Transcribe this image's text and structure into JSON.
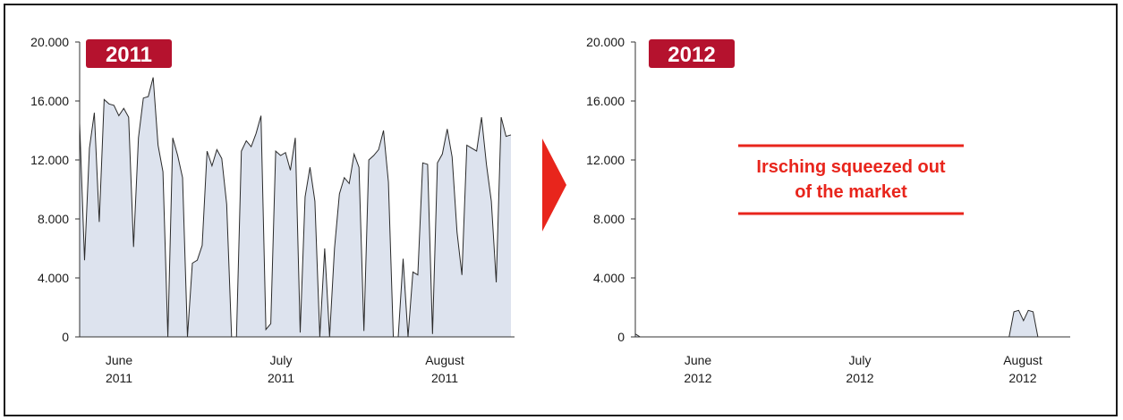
{
  "colors": {
    "area_fill": "#dde3ee",
    "line": "#2a2a2a",
    "badge": "#b5122e",
    "accent_red": "#e8251c",
    "axis": "#333333"
  },
  "chart_data": [
    {
      "type": "area",
      "badge": "2011",
      "ylim": [
        0,
        20000
      ],
      "y_ticks": [
        "0",
        "4.000",
        "8.000",
        "12.000",
        "16.000",
        "20.000"
      ],
      "x_ticks": [
        {
          "month": "June",
          "year": "2011"
        },
        {
          "month": "July",
          "year": "2011"
        },
        {
          "month": "August",
          "year": "2011"
        }
      ],
      "x_range": [
        0,
        91
      ],
      "values": [
        14500,
        5200,
        12800,
        15200,
        7800,
        16100,
        15800,
        15700,
        15000,
        15500,
        14900,
        6100,
        13500,
        16200,
        16300,
        17600,
        13000,
        11200,
        0,
        13500,
        12300,
        10800,
        0,
        5000,
        5200,
        6200,
        12600,
        11600,
        12700,
        12100,
        9000,
        0,
        0,
        12600,
        13300,
        12900,
        13800,
        15000,
        500,
        900,
        12600,
        12300,
        12500,
        11300,
        13500,
        300,
        9500,
        11500,
        9200,
        0,
        6000,
        0,
        6000,
        9700,
        10800,
        10400,
        12400,
        11500,
        400,
        12000,
        12300,
        12700,
        14000,
        10500,
        0,
        0,
        5300,
        0,
        4400,
        4200,
        11800,
        11700,
        200,
        11800,
        12400,
        14100,
        12200,
        7100,
        4200,
        13000,
        12800,
        12600,
        14900,
        11700,
        9200,
        3700,
        14900,
        13600,
        13700
      ],
      "baseline_start_value": 0
    },
    {
      "type": "area",
      "badge": "2012",
      "ylim": [
        0,
        20000
      ],
      "y_ticks": [
        "0",
        "4.000",
        "8.000",
        "12.000",
        "16.000",
        "20.000"
      ],
      "x_ticks": [
        {
          "month": "June",
          "year": "2012"
        },
        {
          "month": "July",
          "year": "2012"
        },
        {
          "month": "August",
          "year": "2012"
        }
      ],
      "x_range": [
        0,
        91
      ],
      "values": [
        200,
        0,
        0,
        0,
        0,
        0,
        0,
        0,
        0,
        0,
        0,
        0,
        0,
        0,
        0,
        0,
        0,
        0,
        0,
        0,
        0,
        0,
        0,
        0,
        0,
        0,
        0,
        0,
        0,
        0,
        0,
        0,
        0,
        0,
        0,
        0,
        0,
        0,
        0,
        0,
        0,
        0,
        0,
        0,
        0,
        0,
        0,
        0,
        0,
        0,
        0,
        0,
        0,
        0,
        0,
        0,
        0,
        0,
        0,
        0,
        0,
        0,
        0,
        0,
        0,
        0,
        0,
        0,
        0,
        0,
        0,
        0,
        0,
        0,
        0,
        0,
        0,
        0,
        0,
        1700,
        1800,
        1100,
        1800,
        1700,
        0,
        0,
        0,
        0,
        0,
        0,
        0
      ],
      "annotation": [
        "Irsching squeezed out",
        "of the market"
      ]
    }
  ]
}
